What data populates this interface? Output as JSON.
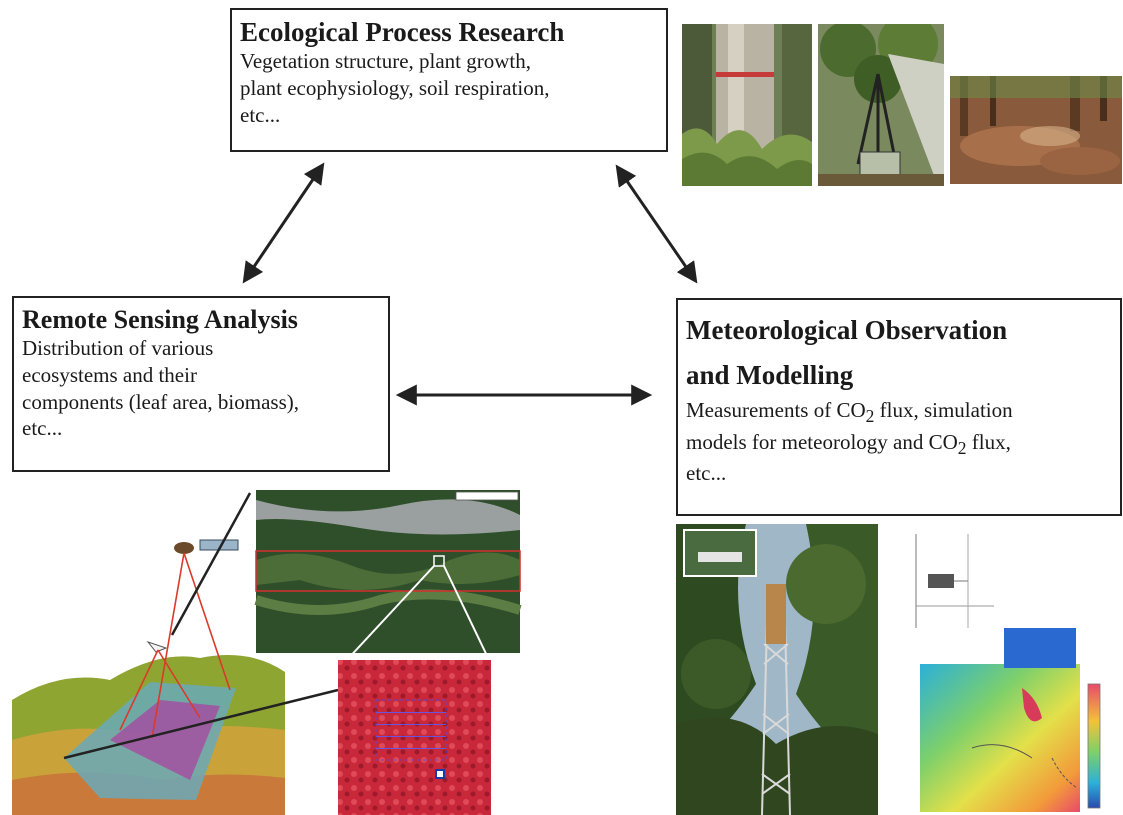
{
  "boxes": {
    "ecological": {
      "title": "Ecological Process Research",
      "line1": "Vegetation structure, plant growth,",
      "line2": "plant ecophysiology, soil respiration,",
      "line3": "etc..."
    },
    "remote_sensing": {
      "title": "Remote Sensing Analysis",
      "line1": "Distribution of various",
      "line2": "ecosystems and their",
      "line3": "components (leaf area, biomass),",
      "line4": "etc..."
    },
    "meteorological": {
      "title_line1": "Meteorological Observation",
      "title_line2": "and Modelling",
      "line1_pre": "Measurements of CO",
      "line1_sub": "2",
      "line1_post": " flux, simulation",
      "line2_pre": "models for meteorology and CO",
      "line2_sub": "2",
      "line2_post": " flux,",
      "line3": "etc..."
    }
  },
  "colors": {
    "border": "#222222",
    "arrow": "#222222",
    "satellite_beam": "#d93a2b",
    "infrared": "#c8283a"
  },
  "arrows": [
    {
      "name": "eco-remote-sensing",
      "double_headed": true
    },
    {
      "name": "eco-meteorology",
      "double_headed": true
    },
    {
      "name": "remote-sensing-meteorology",
      "double_headed": true
    }
  ]
}
